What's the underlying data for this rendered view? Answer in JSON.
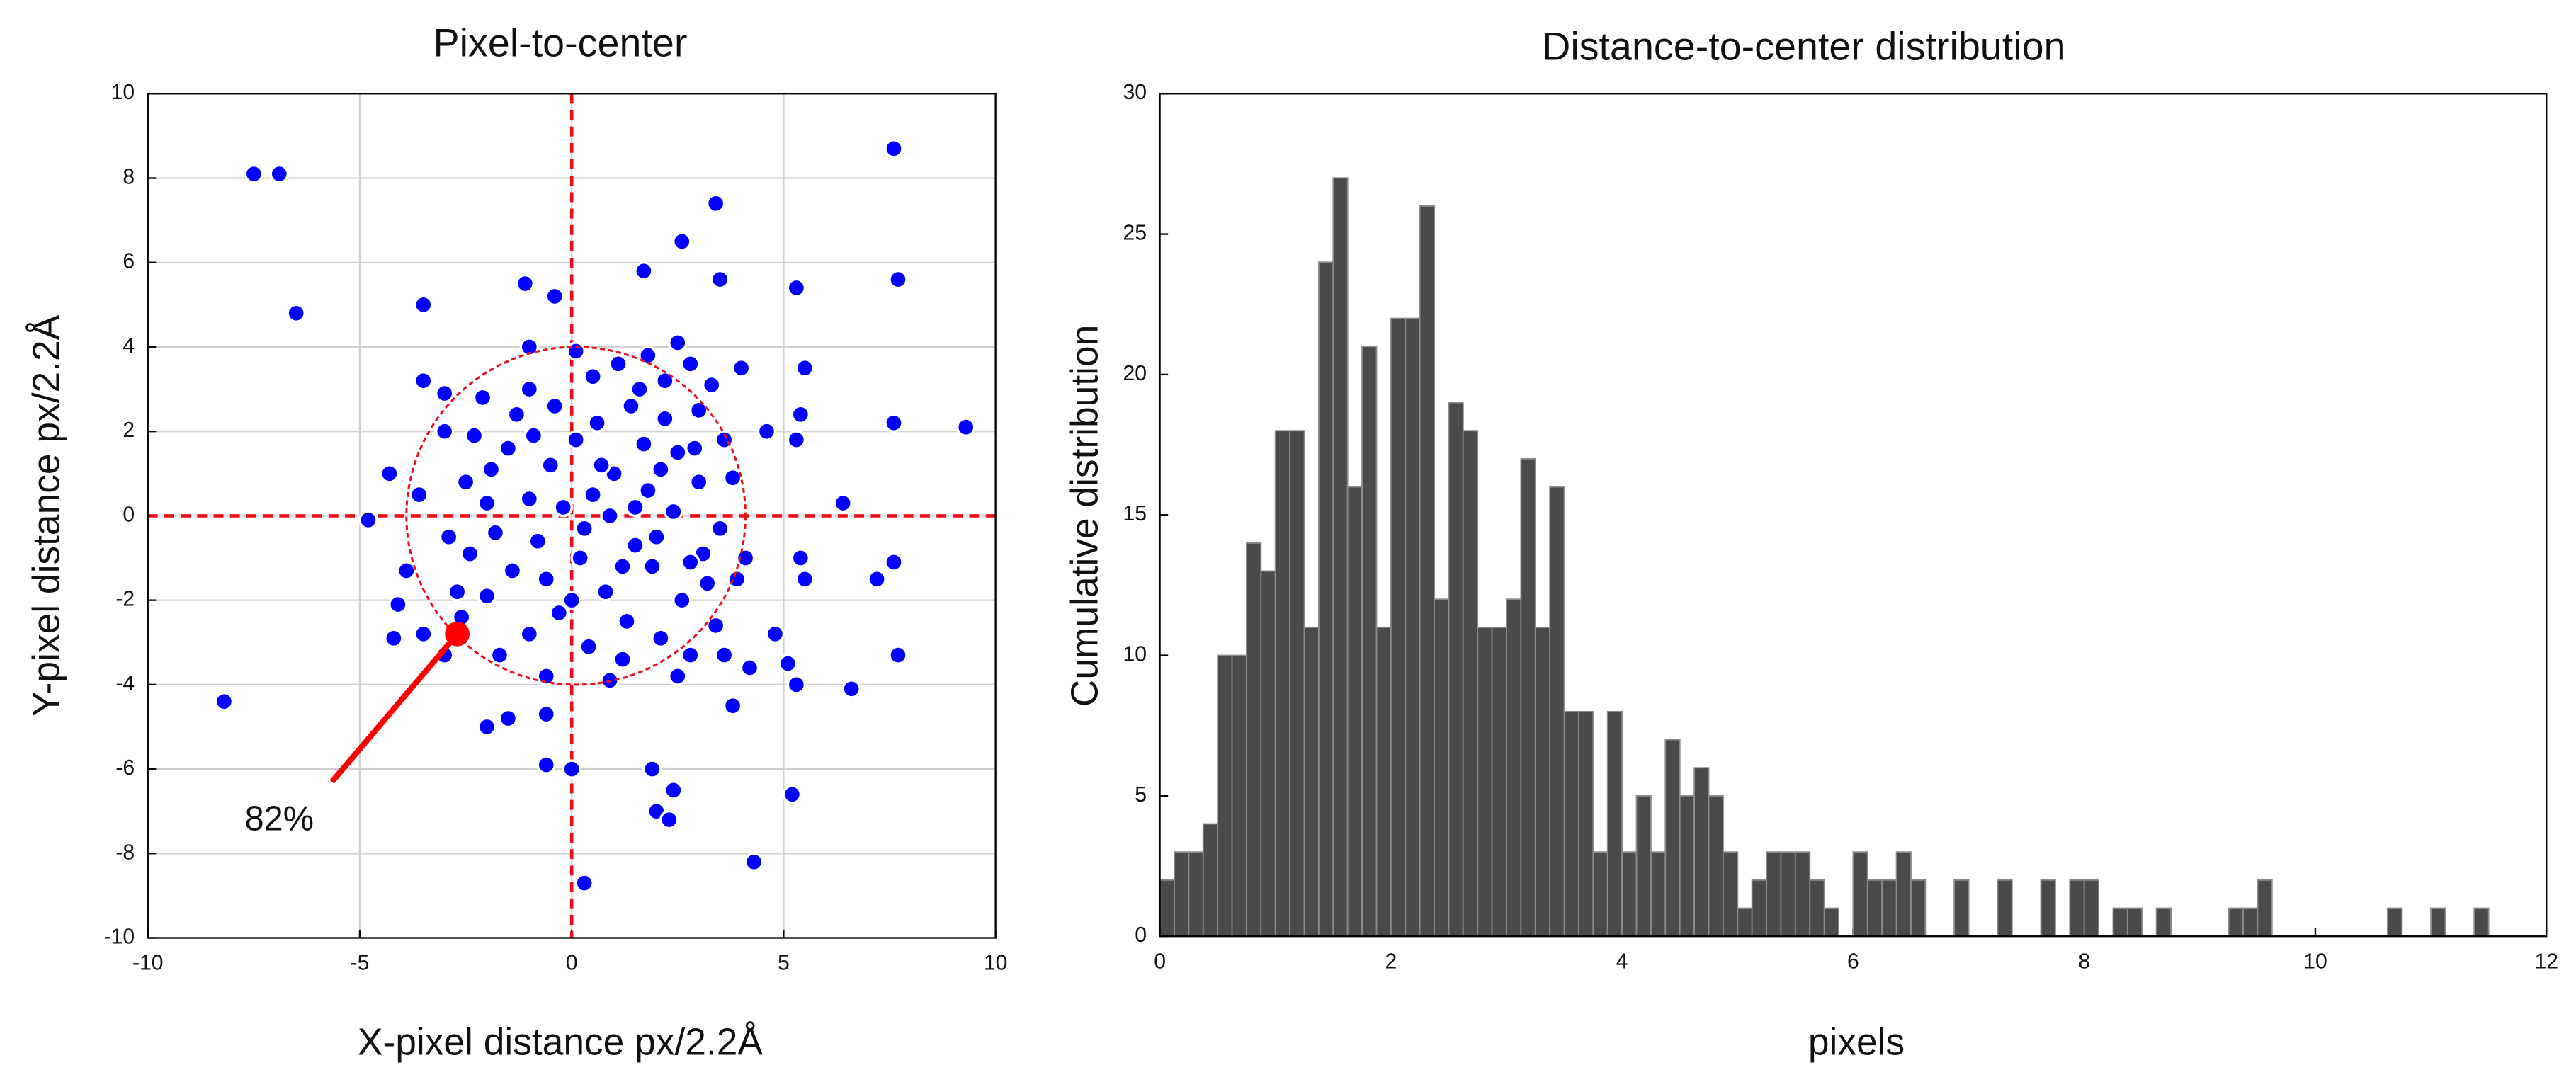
{
  "chart_data": [
    {
      "type": "scatter",
      "title": "Pixel-to-center",
      "x_label": "X-pixel distance px/2.2Å",
      "y_label": "Y-pixel distance px/2.2Å",
      "xlim": [
        -10,
        10
      ],
      "ylim": [
        -10,
        10
      ],
      "xticks": [
        -10,
        -5,
        0,
        5,
        10
      ],
      "yticks": [
        -10,
        -8,
        -6,
        -4,
        -2,
        0,
        2,
        4,
        6,
        8,
        10
      ],
      "grid": true,
      "color": "#0000ff",
      "reference_lines": {
        "x": 0,
        "y": 0,
        "color": "#e8101a"
      },
      "circle": {
        "x": 0.1,
        "y": 0,
        "r": 4,
        "color": "#e8101a"
      },
      "highlight": {
        "x": -2.7,
        "y": -2.8,
        "label": "82%",
        "color": "#ff0000"
      },
      "series": [
        {
          "x": [
            -7.5,
            -6.9,
            -6.5,
            -8.2,
            7.6,
            7.7,
            9.3,
            7.6,
            7.7,
            7.6,
            7.2,
            6.6,
            6.4,
            5.5,
            5.3,
            5.2,
            5.1,
            5.3,
            5.4,
            5.3,
            5.5,
            5.4,
            4.3,
            3.4,
            3.5,
            2.6,
            1.7,
            0.3,
            0,
            -0.6,
            -1.1,
            -0.4,
            -3.5,
            -3.5,
            -3.0,
            -3.0,
            -4.3,
            -4.8,
            -4.1,
            -4.2,
            -3.5,
            -3.0,
            -2.0,
            -1.5,
            -0.6,
            2.0,
            2.4,
            2.3,
            1.9,
            4.2,
            4.8,
            3.8,
            2.5,
            1.8,
            -1.0,
            -1.0,
            0.5,
            2.8,
            4.0,
            4.6,
            4.1,
            -2.5,
            -3.6,
            -3.9,
            -2.7,
            0.5,
            1,
            1.5,
            2,
            2.5,
            3,
            3.5,
            0.2,
            0.8,
            1.3,
            1.9,
            2.6,
            3.2,
            3.8,
            -0.5,
            -1,
            -1.5,
            -2,
            -0.8,
            -1.4,
            -2,
            -2.4,
            -0.3,
            -1,
            0.4,
            1.2,
            2.1,
            2.8,
            3.4,
            0.6,
            1.4,
            2.2,
            3,
            -0.4,
            -1.3,
            -2.3,
            0.1,
            1.7,
            2.9,
            3.6,
            0.9,
            1.8,
            2.4,
            -0.2,
            -1.8,
            -2.9,
            -2.6,
            -1.7,
            -0.6,
            0.9,
            2.5,
            3.6,
            1.1,
            0.1,
            2.2,
            -2.1,
            3.1,
            1.5,
            0.3,
            2.1,
            1.2,
            -0.6,
            2.8,
            3.9,
            0.7,
            1.6,
            -1.9,
            -0.9,
            3.3,
            0
          ],
          "values": [
            8.1,
            8.1,
            4.8,
            -4.4,
            8.7,
            5.6,
            2.1,
            2.2,
            -3.3,
            -1.1,
            -1.5,
            -4.1,
            0.3,
            3.5,
            5.4,
            -6.6,
            -3.5,
            -4.0,
            2.4,
            1.8,
            -1.5,
            -1.0,
            -8.2,
            7.4,
            5.6,
            6.5,
            5.8,
            -8.7,
            -6.0,
            -5.9,
            5.5,
            5.2,
            5.0,
            3.2,
            2.9,
            2.0,
            1.0,
            -0.1,
            -2.1,
            -2.9,
            -2.8,
            -3.3,
            -5.0,
            -4.8,
            -4.7,
            -7.0,
            -6.5,
            -7.2,
            -6.0,
            -3.6,
            -2.8,
            -4.5,
            4.1,
            3.8,
            4.0,
            3.0,
            3.3,
            3.6,
            3.5,
            2.0,
            -1.0,
            0.8,
            0.5,
            -1.3,
            -1.8,
            0.5,
            1,
            0.2,
            -0.5,
            1.5,
            0.8,
            -0.3,
            -1,
            -1.8,
            -2.5,
            -1.2,
            -2,
            -1.6,
            0.9,
            1.2,
            0.4,
            1.6,
            0.3,
            -0.6,
            -1.3,
            -1.9,
            -0.9,
            -2.3,
            -2.8,
            -3.1,
            -3.4,
            -2.9,
            -3.3,
            -2.6,
            2.2,
            2.6,
            2.3,
            2.5,
            2.6,
            2.4,
            1.9,
            1.8,
            1.7,
            1.6,
            1.8,
            0,
            0.6,
            0.1,
            0.2,
            -0.4,
            -0.5,
            -2.4,
            -3.3,
            -3.8,
            -3.9,
            -3.8,
            -3.3,
            3.6,
            3.9,
            3.2,
            2.8,
            -0.9,
            -0.7,
            -0.3,
            1.1,
            -1.2,
            -1.5,
            -1.1,
            -1.5,
            1.2,
            3.0,
            1.1,
            1.9,
            3.1,
            -2
          ]
        }
      ]
    },
    {
      "type": "histogram",
      "title": "Distance-to-center distribution",
      "x_label": "pixels",
      "y_label": "Cumulative distribution",
      "xlim": [
        0,
        12
      ],
      "ylim": [
        0,
        30
      ],
      "xticks": [
        0,
        2,
        4,
        6,
        8,
        10,
        12
      ],
      "yticks": [
        0,
        5,
        10,
        15,
        20,
        25,
        30
      ],
      "grid": false,
      "color": "#4a4a4a",
      "bins": [
        0,
        0.125,
        0.25,
        0.375,
        0.5,
        0.625,
        0.75,
        0.875,
        1,
        1.125,
        1.25,
        1.375,
        1.5,
        1.625,
        1.75,
        1.875,
        2,
        2.125,
        2.25,
        2.375,
        2.5,
        2.625,
        2.75,
        2.875,
        3,
        3.125,
        3.25,
        3.375,
        3.5,
        3.625,
        3.75,
        3.875,
        4,
        4.125,
        4.25,
        4.375,
        4.5,
        4.625,
        4.75,
        4.875,
        5,
        5.125,
        5.25,
        5.375,
        5.5,
        5.625,
        5.75,
        5.875,
        6,
        6.125,
        6.25,
        6.375,
        6.5,
        6.625,
        6.75,
        6.875,
        7,
        7.125,
        7.25,
        7.375,
        7.5,
        7.625,
        7.75,
        7.875,
        8,
        8.125,
        8.25,
        8.375,
        8.5,
        8.625,
        8.75,
        8.875,
        9,
        9.125,
        9.25,
        9.375,
        9.5,
        9.625,
        9.75,
        9.875,
        10,
        10.125,
        10.25,
        10.375,
        10.5,
        10.625,
        10.75,
        10.875,
        11,
        11.125,
        11.25,
        11.375,
        11.5
      ],
      "values": [
        2,
        3,
        3,
        4,
        10,
        10,
        14,
        13,
        18,
        18,
        11,
        24,
        27,
        16,
        21,
        11,
        22,
        22,
        26,
        12,
        19,
        18,
        11,
        11,
        12,
        17,
        11,
        16,
        8,
        8,
        3,
        8,
        3,
        5,
        3,
        7,
        5,
        6,
        5,
        3,
        1,
        2,
        3,
        3,
        3,
        2,
        1,
        0,
        3,
        2,
        2,
        3,
        2,
        0,
        0,
        2,
        0,
        0,
        2,
        0,
        0,
        2,
        0,
        2,
        2,
        0,
        1,
        1,
        0,
        1,
        0,
        0,
        0,
        0,
        1,
        1,
        2,
        0,
        0,
        0,
        0,
        0,
        0,
        0,
        0,
        1,
        0,
        0,
        1,
        0,
        0,
        1
      ]
    }
  ]
}
